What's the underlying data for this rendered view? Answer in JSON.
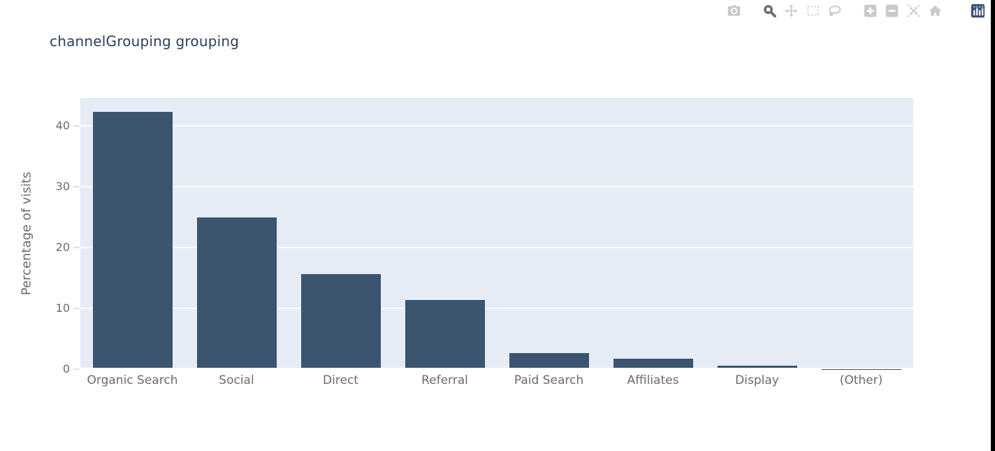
{
  "page": {
    "background": "#ffffff",
    "right_edge_color": "#000000"
  },
  "modebar": {
    "icon_color": "#c9c9c9",
    "active_icon_color": "#6a6a6a",
    "logo_bg": "#3F4F75",
    "logo_bar_color": "#ffffff",
    "logo_dot_color": "#80CFBE",
    "buttons": [
      {
        "icon": "camera-icon",
        "name": "download-png-button",
        "active": false,
        "group": 1
      },
      {
        "icon": "zoom-icon",
        "name": "zoom-mode-button",
        "active": true,
        "group": 2
      },
      {
        "icon": "pan-icon",
        "name": "pan-mode-button",
        "active": false,
        "group": 2
      },
      {
        "icon": "box-select-icon",
        "name": "box-select-button",
        "active": false,
        "group": 2
      },
      {
        "icon": "lasso-icon",
        "name": "lasso-select-button",
        "active": false,
        "group": 2
      },
      {
        "icon": "zoom-in-icon",
        "name": "zoom-in-button",
        "active": false,
        "group": 3
      },
      {
        "icon": "zoom-out-icon",
        "name": "zoom-out-button",
        "active": false,
        "group": 3
      },
      {
        "icon": "autoscale-icon",
        "name": "autoscale-button",
        "active": false,
        "group": 3
      },
      {
        "icon": "home-icon",
        "name": "reset-axes-button",
        "active": false,
        "group": 3
      },
      {
        "icon": "plotly-logo-icon",
        "name": "plotly-logo-button",
        "active": false,
        "group": 4
      }
    ]
  },
  "chart_data": {
    "type": "bar",
    "title": "channelGrouping grouping",
    "xlabel": "",
    "ylabel": "Percentage of visits",
    "categories": [
      "Organic Search",
      "Social",
      "Direct",
      "Referral",
      "Paid Search",
      "Affiliates",
      "Display",
      "(Other)"
    ],
    "values": [
      42.3,
      24.9,
      15.6,
      11.4,
      2.6,
      1.7,
      0.6,
      0.05
    ],
    "yticks": [
      0,
      10,
      20,
      30,
      40
    ],
    "ylim": [
      0,
      44.6
    ],
    "grid": true,
    "legend": false,
    "colors": {
      "bar": "#3B546F",
      "plot_bg": "#E5ECF6",
      "grid": "#FFFFFF",
      "zeroline": "#FFFFFF",
      "title": "#2A3F5F",
      "tick_text": "#6B6B6B",
      "axis_label_text": "#6B6B6B",
      "tick_mark": "#D9E2F0"
    }
  }
}
